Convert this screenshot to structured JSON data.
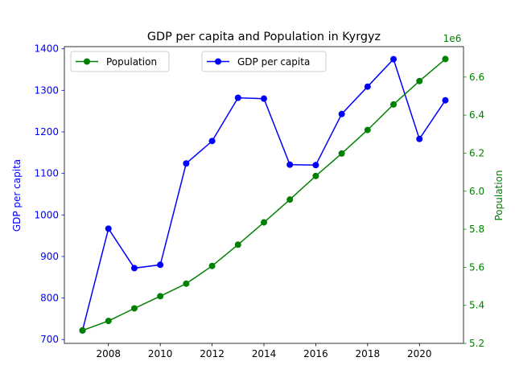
{
  "chart_data": {
    "type": "line",
    "title": "GDP per capita and Population in Kyrgyz",
    "x": [
      2007,
      2008,
      2009,
      2010,
      2011,
      2012,
      2013,
      2014,
      2015,
      2016,
      2017,
      2018,
      2019,
      2020,
      2021
    ],
    "x_ticks": [
      "2008",
      "2010",
      "2012",
      "2014",
      "2016",
      "2018",
      "2020"
    ],
    "y_left": {
      "label": "GDP per capita",
      "ticks": [
        "700",
        "800",
        "900",
        "1000",
        "1100",
        "1200",
        "1300",
        "1400"
      ],
      "color": "#0000ff"
    },
    "y_right": {
      "label": "Population",
      "offset_text": "1e6",
      "ticks": [
        "5.2",
        "5.4",
        "5.6",
        "5.8",
        "6.0",
        "6.2",
        "6.4",
        "6.6"
      ],
      "color": "#008000"
    },
    "series": [
      {
        "name": "GDP per capita",
        "axis": "left",
        "color": "#0000ff",
        "values": [
          722,
          967,
          872,
          880,
          1124,
          1178,
          1282,
          1280,
          1121,
          1120,
          1243,
          1309,
          1375,
          1183,
          1276
        ]
      },
      {
        "name": "Population",
        "axis": "right",
        "color": "#008000",
        "values": [
          5268000,
          5318000,
          5384000,
          5448000,
          5514000,
          5607000,
          5719000,
          5836000,
          5956000,
          6080000,
          6198000,
          6322000,
          6456000,
          6579000,
          6695000
        ]
      }
    ],
    "legend": [
      "Population",
      "GDP per capita"
    ],
    "grid": false
  }
}
